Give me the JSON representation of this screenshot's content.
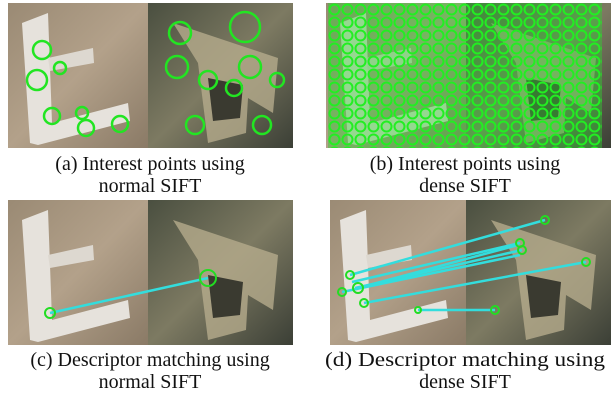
{
  "panels": [
    {
      "caption_lines": [
        "(a) Interest points using",
        "normal SIFT"
      ]
    },
    {
      "caption_lines": [
        "(b) Interest points using",
        "dense SIFT"
      ]
    },
    {
      "caption_lines": [
        "(c) Descriptor matching using",
        "normal SIFT"
      ]
    },
    {
      "caption_lines": [
        "(d) Descriptor matching using",
        "dense SIFT"
      ]
    }
  ]
}
